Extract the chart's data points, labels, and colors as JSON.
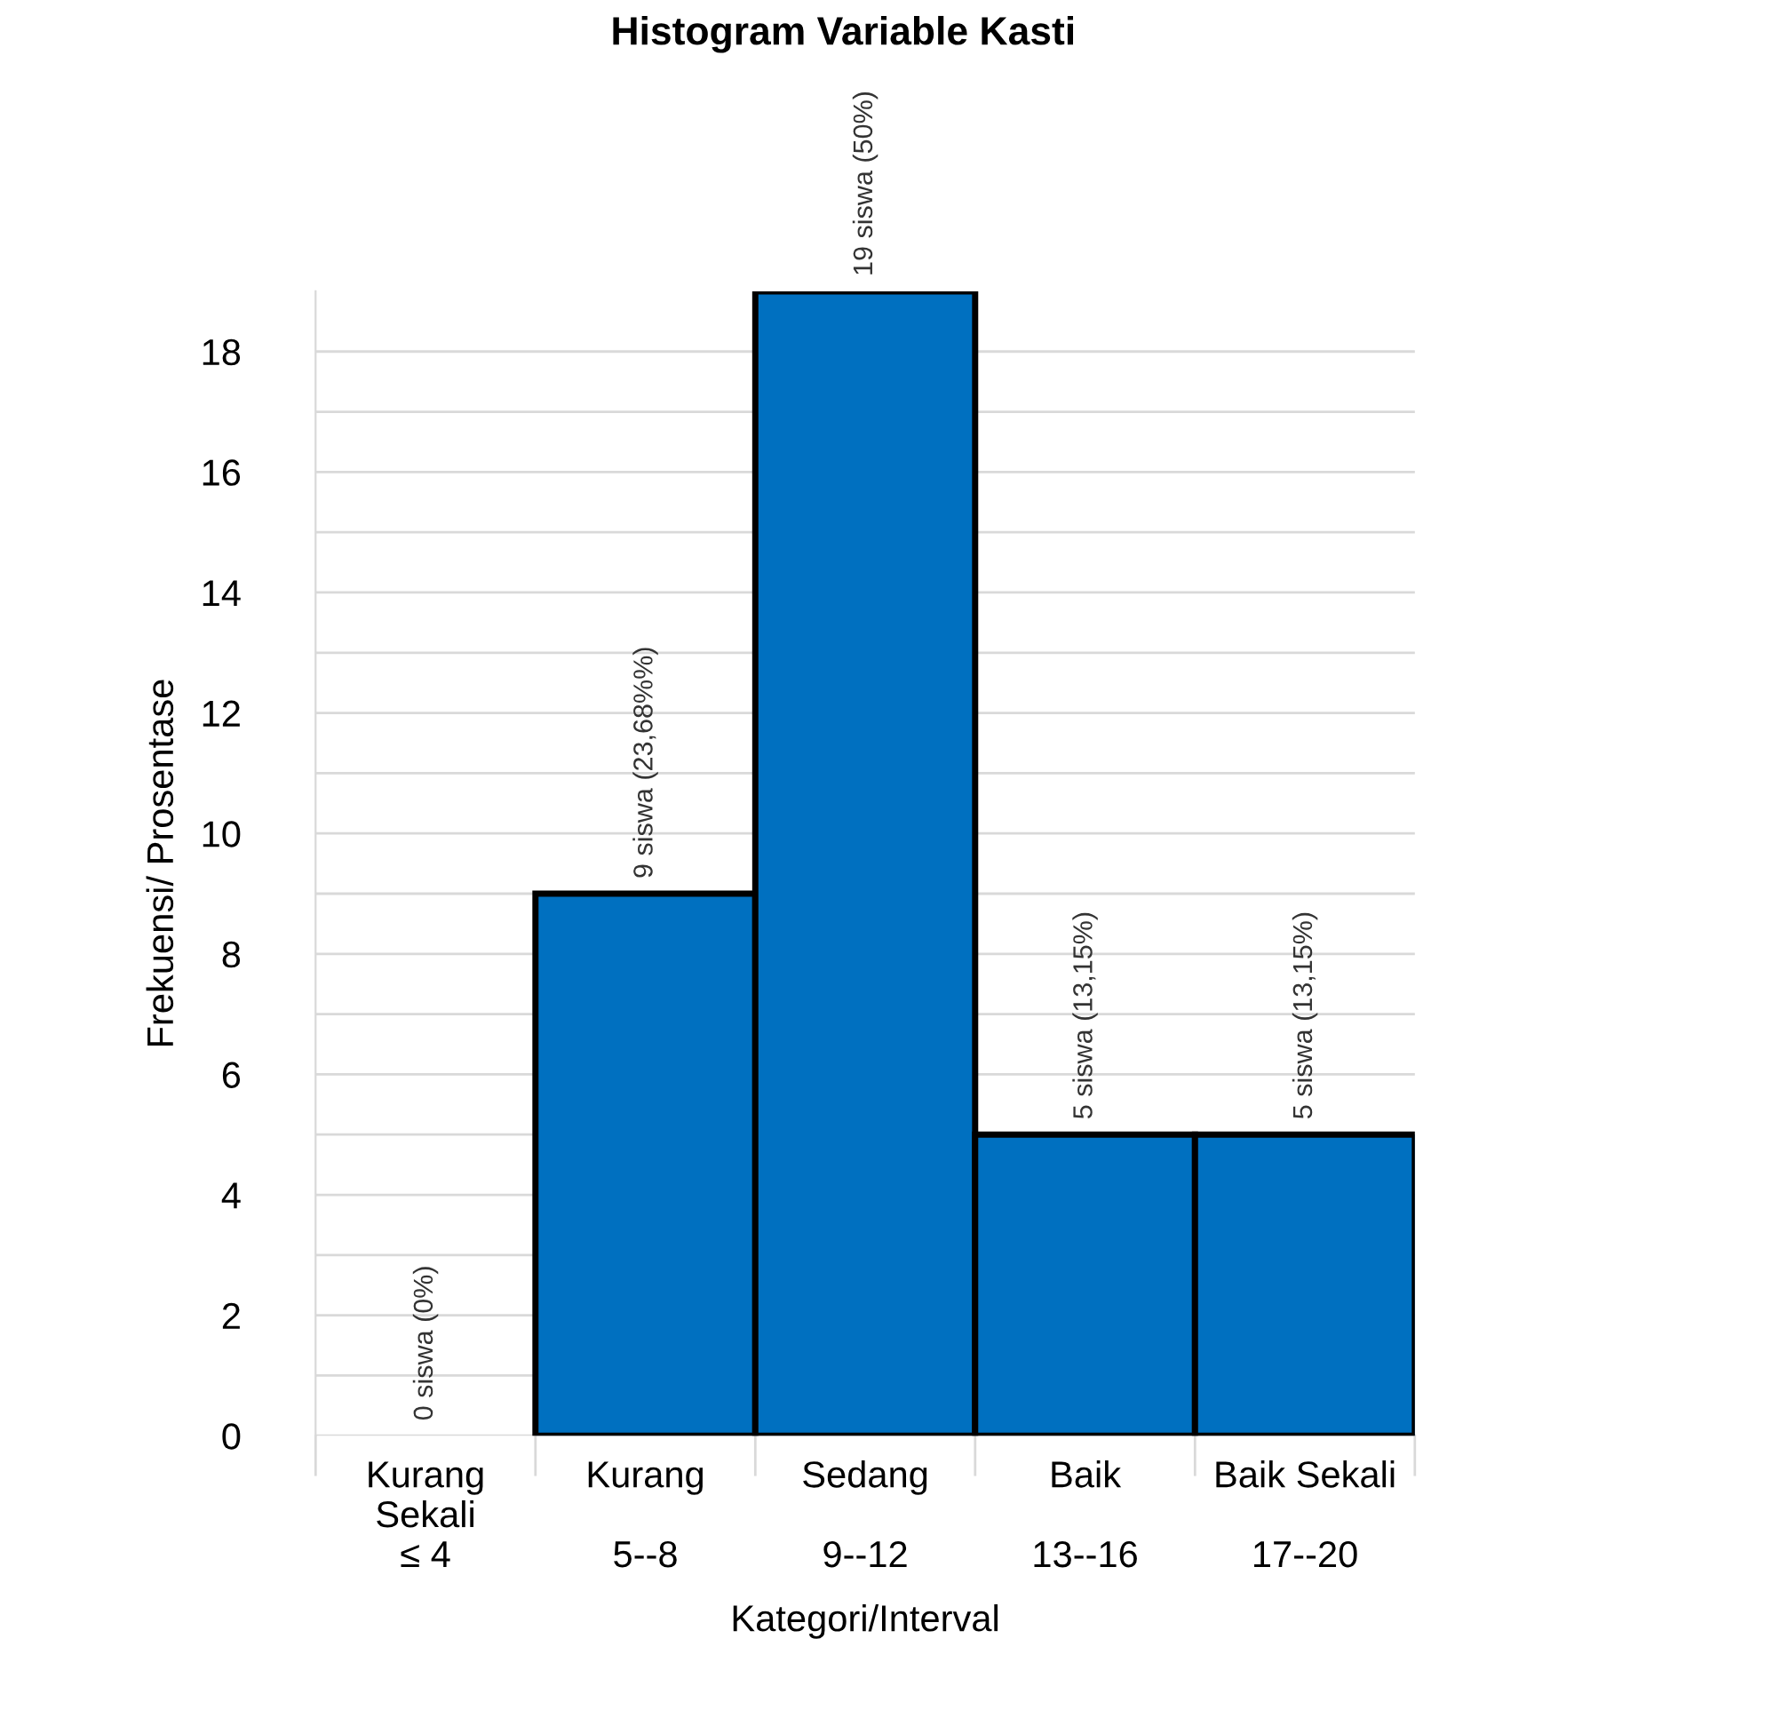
{
  "chart_data": {
    "type": "bar",
    "title": "Histogram Variable Kasti",
    "xlabel": "Kategori/Interval",
    "ylabel": "Frekuensi/ Prosentase",
    "categories": [
      "Kurang\nSekali\n≤ 4",
      "Kurang\n\n5--8",
      "Sedang\n\n9--12",
      "Baik\n\n13--16",
      "Baik Sekali\n\n17--20"
    ],
    "values": [
      0,
      9,
      19,
      5,
      5
    ],
    "color": "#0070c0",
    "value_labels": [
      "0 siswa (0%)",
      "9 siswa (23,68%%)",
      "19 siswa (50%)",
      "5 siswa (13,15%)",
      "5 siswa (13,15%)"
    ],
    "ylim": [
      0,
      19
    ],
    "yticks": [
      0,
      {
        "value": 1,
        "label": null
      },
      2,
      {
        "value": 3,
        "label": null
      },
      4,
      {
        "value": 5,
        "label": null
      },
      6,
      {
        "value": 7,
        "label": null
      },
      8,
      {
        "value": 9,
        "label": null
      },
      10,
      {
        "value": 11,
        "label": null
      },
      12,
      {
        "value": 13,
        "label": null
      },
      14,
      {
        "value": 15,
        "label": null
      },
      16,
      {
        "value": 17,
        "label": null
      },
      18
    ],
    "grid": "y",
    "legend": false
  }
}
